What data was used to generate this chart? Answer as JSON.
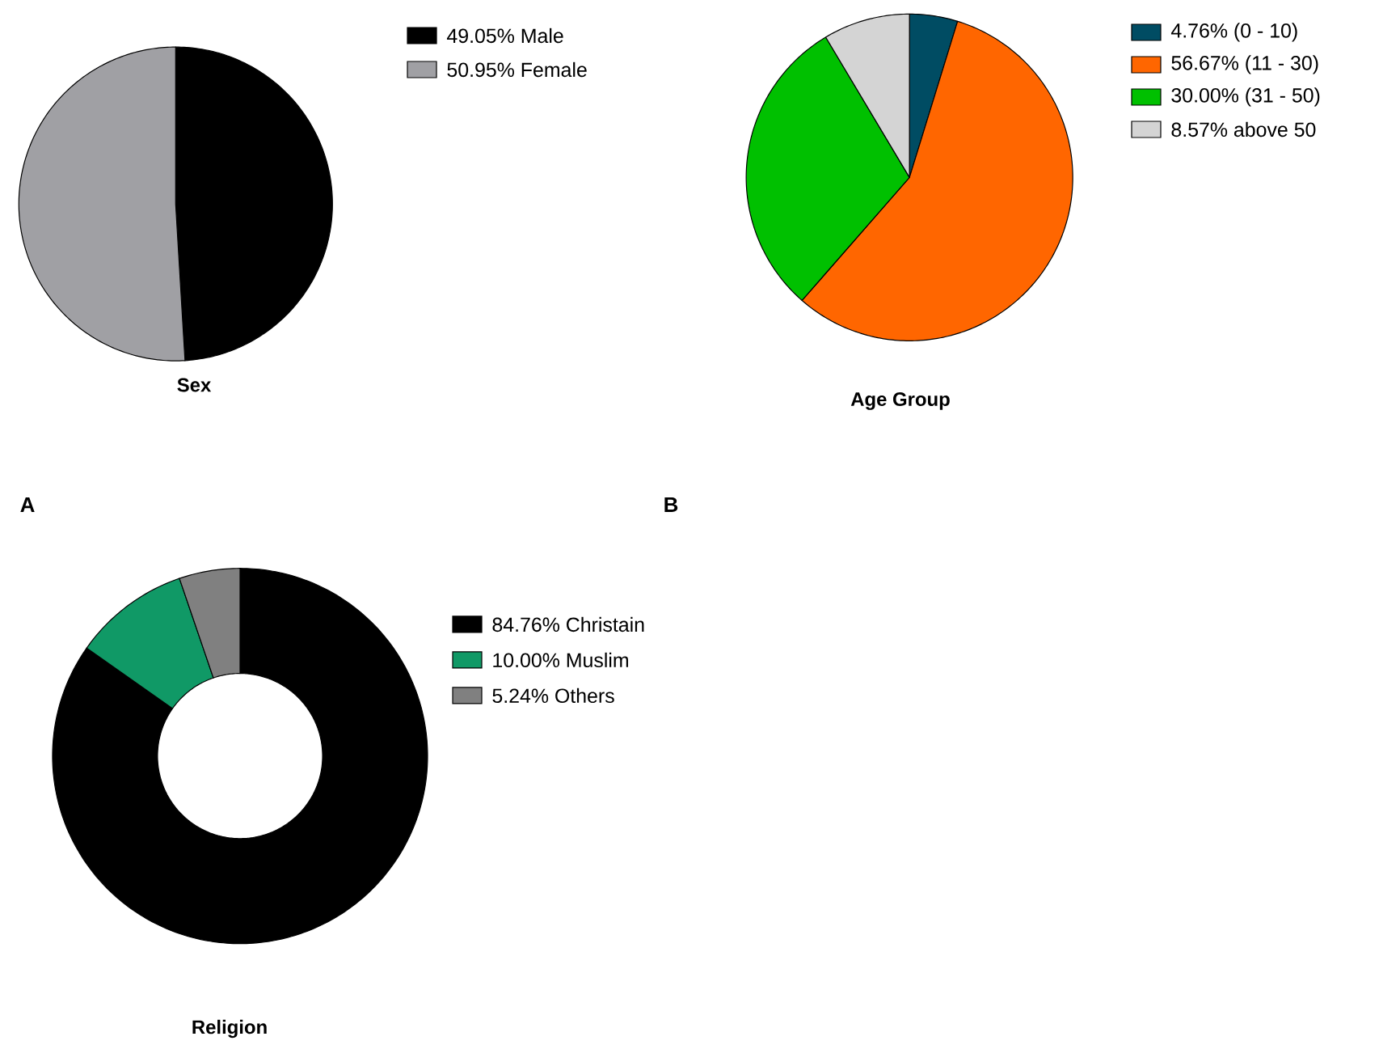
{
  "chart_data": [
    {
      "type": "pie",
      "title": "Sex",
      "categories": [
        "49.05%  Male",
        "50.95%  Female"
      ],
      "values": [
        49.05,
        50.95
      ],
      "colors": [
        "#000000",
        "#a0a0a4"
      ],
      "legend": "right",
      "annotations": [
        "A"
      ]
    },
    {
      "type": "pie",
      "title": "Age Group",
      "categories": [
        "4.76%  (0 - 10)",
        "56.67%  (11 - 30)",
        "30.00%  (31 - 50)",
        "8.57%  above 50"
      ],
      "values": [
        4.76,
        56.67,
        30.0,
        8.57
      ],
      "colors": [
        "#004c63",
        "#ff6600",
        "#00c000",
        "#d4d4d4"
      ],
      "legend": "right",
      "annotations": [
        "B"
      ]
    },
    {
      "type": "donut",
      "title": "Religion",
      "categories": [
        "84.76%  Christain",
        "10.00%  Muslim",
        "5.24%  Others"
      ],
      "values": [
        84.76,
        10.0,
        5.24
      ],
      "colors": [
        "#000000",
        "#109966",
        "#808080"
      ],
      "legend": "right"
    }
  ]
}
